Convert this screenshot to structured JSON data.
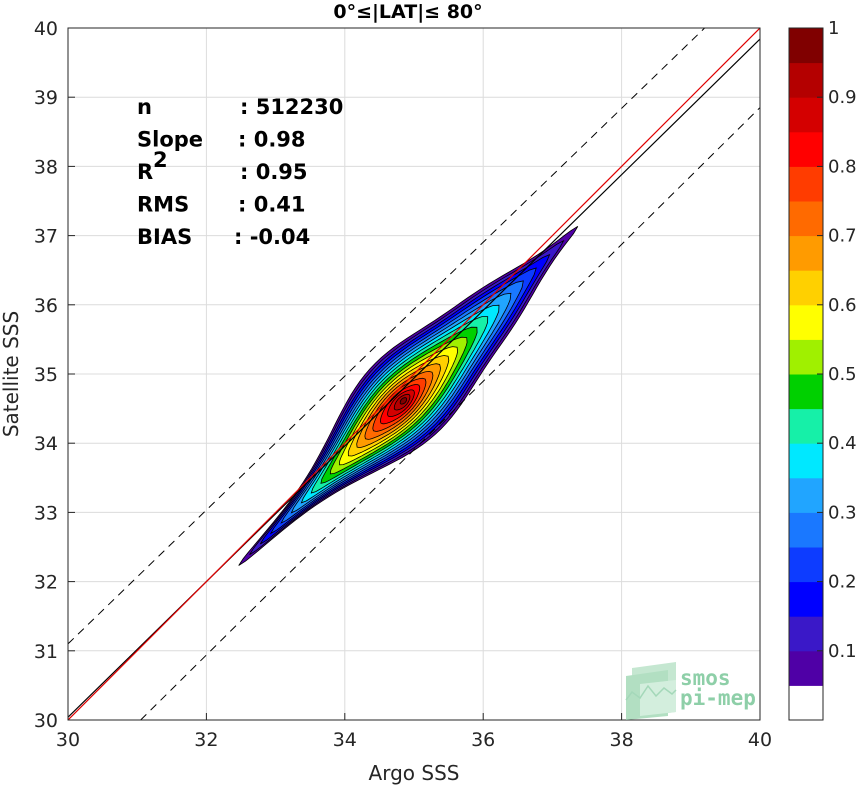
{
  "chart_data": {
    "type": "density_scatter",
    "title": "0°≤|LAT|≤ 80°",
    "xlabel": "Argo SSS",
    "ylabel": "Satellite SSS",
    "xlim": [
      30,
      40
    ],
    "ylim": [
      30,
      40
    ],
    "x_ticks": [
      "30",
      "32",
      "34",
      "36",
      "38",
      "40"
    ],
    "y_ticks": [
      "30",
      "31",
      "32",
      "33",
      "34",
      "35",
      "36",
      "37",
      "38",
      "39",
      "40"
    ],
    "grid": true,
    "stats": [
      {
        "label": "n",
        "value": ": 512230"
      },
      {
        "label": "Slope",
        "value": ": 0.98"
      },
      {
        "label": "R",
        "sup": "2",
        "value": ": 0.95"
      },
      {
        "label": "RMS",
        "value": ": 0.41"
      },
      {
        "label": "BIAS",
        "value": ": -0.04"
      }
    ],
    "reference_lines": {
      "one_to_one": {
        "x": [
          30,
          40
        ],
        "y": [
          30,
          40
        ]
      },
      "regression_fit": {
        "x": [
          30,
          40
        ],
        "y": [
          30.04,
          39.84
        ]
      },
      "upper_dashed": {
        "x": [
          30,
          39.2
        ],
        "y": [
          31.1,
          40
        ]
      },
      "lower_dashed": {
        "x": [
          31.05,
          40
        ],
        "y": [
          30,
          38.85
        ]
      }
    },
    "density_contours": {
      "center": [
        35.0,
        34.85
      ],
      "levels": [
        0.05,
        0.1,
        0.15,
        0.2,
        0.25,
        0.3,
        0.35,
        0.4,
        0.45,
        0.5,
        0.55,
        0.6,
        0.65,
        0.7,
        0.75,
        0.8,
        0.85,
        0.9,
        0.95
      ]
    },
    "colorbar": {
      "ticks": [
        "0.1",
        "0.2",
        "0.3",
        "0.4",
        "0.5",
        "0.6",
        "0.7",
        "0.8",
        "0.9",
        "1"
      ],
      "range": [
        0,
        1
      ],
      "colors": [
        "#ffffff",
        "#4f00a6",
        "#3a18c8",
        "#0000ff",
        "#0d3cff",
        "#1a78ff",
        "#21a5ff",
        "#00e8ff",
        "#16f0a8",
        "#00d000",
        "#a0f000",
        "#ffff00",
        "#ffd000",
        "#ff9b00",
        "#ff6a00",
        "#ff3c00",
        "#ff0000",
        "#d40000",
        "#b40000",
        "#800000"
      ]
    }
  },
  "logo": {
    "line1": "smos",
    "line2": "pi-mep"
  }
}
